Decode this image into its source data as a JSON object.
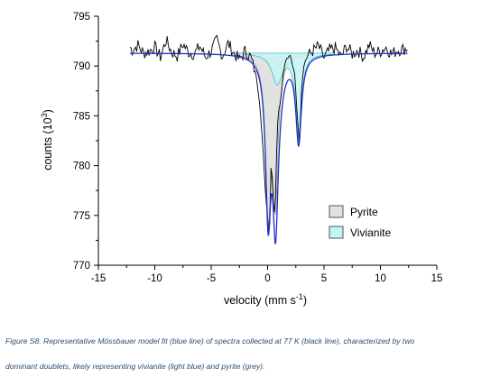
{
  "chart_data": {
    "type": "line",
    "title": "",
    "xlabel": "velocity (mm s⁻¹)",
    "xlabel_parts": [
      "velocity (mm s",
      "-1",
      ")"
    ],
    "ylabel": "counts (10³)",
    "ylabel_parts": [
      "counts (10",
      "3",
      ")"
    ],
    "xlim": [
      -15,
      15
    ],
    "ylim": [
      770,
      795
    ],
    "xticks": [
      -15,
      -10,
      -5,
      0,
      5,
      10,
      15
    ],
    "yticks": [
      770,
      775,
      780,
      785,
      790,
      795
    ],
    "grid": false,
    "legend_position": "lower-right",
    "legend": [
      {
        "name": "Pyrite",
        "color": "#e2e2e2"
      },
      {
        "name": "Vivianite",
        "color": "#c4f6f6"
      }
    ],
    "baseline": 791.3,
    "components": [
      {
        "name": "Pyrite",
        "fill_color": "#e2e2e2",
        "edge_color": "#9a9a9a",
        "lines": [
          {
            "center": 0.05,
            "depth": 15.0,
            "hwhm": 0.28
          },
          {
            "center": 0.7,
            "depth": 13.8,
            "hwhm": 0.28
          }
        ]
      },
      {
        "name": "Vivianite",
        "fill_color": "#c4f6f6",
        "edge_color": "#3fbfbf",
        "lines": [
          {
            "center": 0.85,
            "depth": 3.0,
            "hwhm": 0.55
          },
          {
            "center": 2.75,
            "depth": 8.7,
            "hwhm": 0.3
          }
        ]
      }
    ],
    "series": [
      {
        "name": "spectra collected at 77 K (black line)",
        "color": "#000000",
        "x": [
          -12.2,
          -12.0,
          -11.5,
          -11.0,
          -10.5,
          -10.0,
          -9.5,
          -9.0,
          -8.5,
          -8.0,
          -7.5,
          -7.0,
          -6.5,
          -6.0,
          -5.5,
          -5.0,
          -4.5,
          -4.0,
          -3.5,
          -3.0,
          -2.5,
          -2.0,
          -1.5,
          -1.0,
          -0.7,
          -0.4,
          -0.2,
          0.0,
          0.1,
          0.2,
          0.3,
          0.4,
          0.5,
          0.6,
          0.7,
          0.8,
          0.9,
          1.0,
          1.2,
          1.4,
          1.6,
          1.8,
          2.0,
          2.2,
          2.4,
          2.6,
          2.7,
          2.8,
          2.9,
          3.0,
          3.2,
          3.5,
          4.0,
          4.5,
          5.0,
          5.5,
          6.0,
          6.5,
          7.0,
          7.5,
          8.0,
          8.5,
          9.0,
          9.5,
          10.0,
          10.5,
          11.0,
          11.5,
          12.0,
          12.4
        ],
        "y": [
          791.9,
          791.6,
          792.1,
          791.3,
          791.5,
          791.9,
          790.9,
          792.6,
          791.4,
          791.0,
          792.2,
          791.4,
          791.2,
          792.0,
          790.9,
          791.5,
          792.6,
          791.0,
          792.3,
          791.3,
          790.6,
          791.5,
          790.9,
          789.0,
          786.2,
          781.5,
          777.5,
          774.8,
          773.4,
          774.3,
          779.8,
          779.0,
          776.3,
          775.3,
          776.9,
          781.5,
          784.5,
          785.6,
          787.0,
          789.4,
          790.6,
          790.8,
          791.1,
          790.0,
          789.3,
          785.6,
          783.9,
          782.5,
          784.6,
          787.5,
          790.0,
          791.0,
          791.5,
          792.0,
          790.8,
          791.6,
          791.8,
          790.9,
          792.0,
          791.2,
          791.6,
          790.9,
          792.1,
          791.3,
          791.5,
          791.9,
          791.2,
          791.6,
          791.7,
          791.8
        ]
      },
      {
        "name": "Representative Mössbauer model fit (blue line)",
        "color": "#1f2fd0",
        "x_range": [
          -12.2,
          12.4
        ]
      }
    ]
  },
  "caption": {
    "line1": "Figure S8. Representative Mössbauer model fit (blue line) of spectra collected at 77 K (black line), characterized by two",
    "line2": "dominant doublets, likely representing vivianite (light blue) and pyrite (grey)."
  }
}
